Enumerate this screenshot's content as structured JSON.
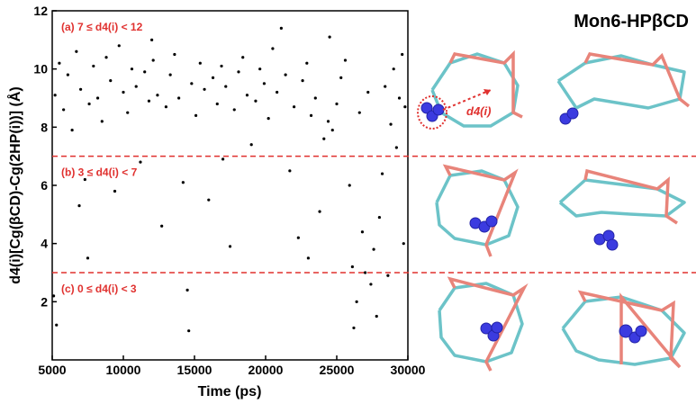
{
  "chart_data": {
    "type": "scatter",
    "title": "Mon6-HPβCD",
    "x_label": "Time (ps)",
    "y_label": "d4(i)[Cg(βCD)-Cg(2HP(i))] (Å)",
    "annotations": [
      "(a) 7 ≤ d4(i) < 12",
      "(b) 3 ≤ d4(i) < 7",
      "(c) 0 ≤ d4(i) < 3"
    ],
    "thresholds": [
      7,
      3
    ],
    "inset_label": "d4(i)",
    "color": "#000000",
    "threshold_color": "#e0312f",
    "xlim": [
      5000,
      30000
    ],
    "xticks": [
      5000,
      10000,
      15000,
      20000,
      25000,
      30000
    ],
    "ylim": [
      0,
      12
    ],
    "yticks": [
      2,
      4,
      6,
      8,
      10,
      12
    ],
    "x": [
      5200,
      5500,
      5800,
      6100,
      6400,
      6700,
      7000,
      7300,
      7500,
      7600,
      7900,
      8200,
      8500,
      8800,
      9100,
      9400,
      9700,
      10000,
      10300,
      10600,
      10900,
      11200,
      11500,
      11800,
      12100,
      12400,
      12700,
      13000,
      13300,
      13600,
      13900,
      14200,
      14500,
      14600,
      14800,
      15100,
      15400,
      15700,
      16000,
      16300,
      16600,
      16900,
      17200,
      17500,
      17800,
      18100,
      18400,
      18700,
      19000,
      19300,
      19600,
      19900,
      20200,
      20500,
      20800,
      21100,
      21400,
      21700,
      22000,
      22300,
      22600,
      22900,
      23200,
      23500,
      23800,
      24100,
      24400,
      24700,
      25000,
      25300,
      25600,
      25900,
      26100,
      26200,
      26400,
      26600,
      26800,
      27000,
      27200,
      27400,
      27600,
      27800,
      28000,
      28200,
      28400,
      28600,
      28800,
      29000,
      29200,
      29400,
      29600,
      29800,
      5300,
      5100,
      6900,
      12000,
      17000,
      23000,
      24500,
      29700
    ],
    "values": [
      9.1,
      10.2,
      8.6,
      9.8,
      7.9,
      10.6,
      9.3,
      6.2,
      3.5,
      8.8,
      10.1,
      9.0,
      8.2,
      10.4,
      9.6,
      5.8,
      10.8,
      9.2,
      8.5,
      10.0,
      9.4,
      6.8,
      9.9,
      8.9,
      10.3,
      9.1,
      4.6,
      8.7,
      9.8,
      10.5,
      9.0,
      6.1,
      2.4,
      1.0,
      9.5,
      8.4,
      10.2,
      9.3,
      5.5,
      9.7,
      8.8,
      10.1,
      9.4,
      3.9,
      8.6,
      9.9,
      10.4,
      9.1,
      7.4,
      8.9,
      10.0,
      9.5,
      8.3,
      10.7,
      9.2,
      11.4,
      9.8,
      6.5,
      8.7,
      4.2,
      9.6,
      10.2,
      8.4,
      9.0,
      5.1,
      7.6,
      8.2,
      7.9,
      8.8,
      9.7,
      10.3,
      6.0,
      3.2,
      1.1,
      2.0,
      8.5,
      4.4,
      3.0,
      9.2,
      2.6,
      3.8,
      1.5,
      4.9,
      6.4,
      9.4,
      2.9,
      8.1,
      10.0,
      7.3,
      9.0,
      10.5,
      8.7,
      1.2,
      2.2,
      5.3,
      11.0,
      6.9,
      3.5,
      11.1,
      4.0
    ]
  }
}
